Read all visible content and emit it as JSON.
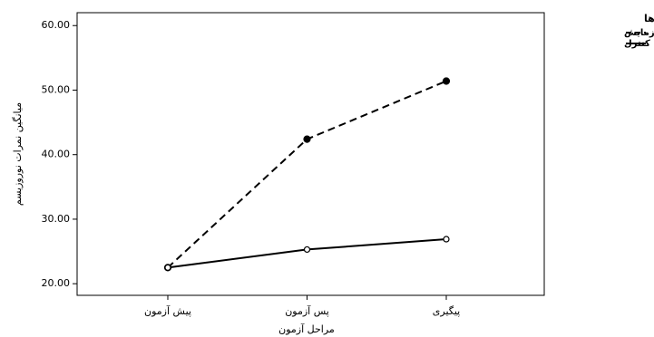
{
  "chart_data": {
    "type": "line",
    "y_label": "میانگین نمرات نوروزیسم",
    "x_label": "مراحل آزمون",
    "legend_title": "گروه ها",
    "categories": [
      "پیش آزمون",
      "پس آزمون",
      "پیگیری"
    ],
    "series": [
      {
        "name": "آزمایش",
        "color": "#000000",
        "dash": true,
        "marker": "filled",
        "values": [
          22.5,
          42.4,
          51.4
        ]
      },
      {
        "name": "کنترل",
        "color": "#000000",
        "dash": false,
        "marker": "open",
        "values": [
          22.5,
          25.3,
          26.9
        ]
      }
    ],
    "ylim": [
      18.2,
      62
    ],
    "yticks": [
      {
        "value": 20,
        "label": "20.00"
      },
      {
        "value": 30,
        "label": "30.00"
      },
      {
        "value": 40,
        "label": "40.00"
      },
      {
        "value": 50,
        "label": "50.00"
      },
      {
        "value": 60,
        "label": "60.00"
      }
    ],
    "legend": "top-right"
  }
}
